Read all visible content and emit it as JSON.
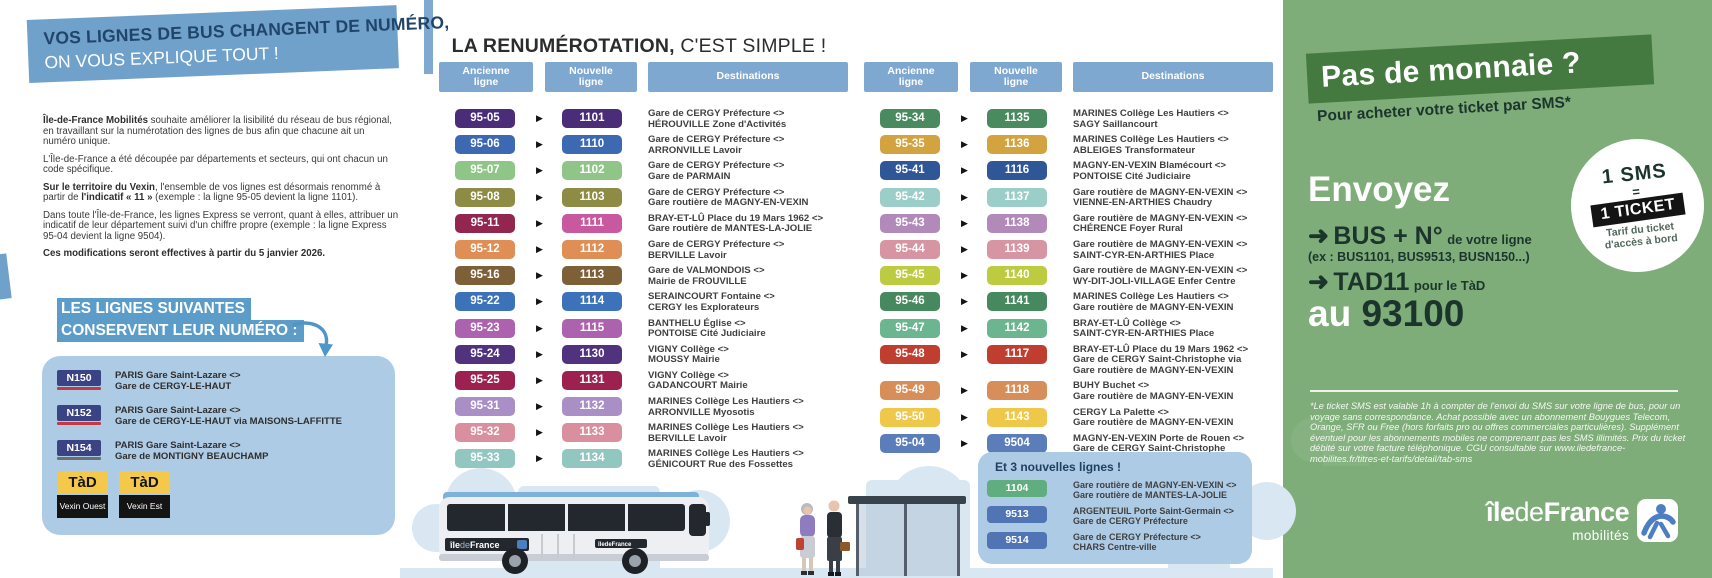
{
  "colors": {
    "banner_blue": "#6FA1CB",
    "card_blue": "#AECBE6",
    "header_bar_blue": "#7FA8D0",
    "chip_blue": "#5C9CC8",
    "navy_badge": "#3A4383",
    "tad_yellow": "#F3C84B",
    "green_bg": "#7FAD7A",
    "green_band": "#447A3F",
    "dark_green_text": "#1B352C"
  },
  "left_panel": {
    "banner_title": "VOS LIGNES DE BUS CHANGENT DE NUMÉRO,",
    "banner_subtitle": "ON VOUS EXPLIQUE TOUT !",
    "paragraphs": [
      {
        "parts": [
          {
            "b": true,
            "t": "Île-de-France Mobilités"
          },
          {
            "t": " souhaite améliorer la lisibilité du réseau de bus régional, en travaillant sur la numérotation des lignes de bus afin que chacune ait un numéro unique."
          }
        ]
      },
      {
        "parts": [
          {
            "t": "L'Île-de-France a été découpée par départements et secteurs, qui ont chacun un code spécifique."
          }
        ]
      },
      {
        "parts": [
          {
            "b": true,
            "t": "Sur le territoire du Vexin"
          },
          {
            "t": ", l'ensemble de vos lignes est désormais renommé à partir de "
          },
          {
            "b": true,
            "t": "l'indicatif « 11 »"
          },
          {
            "t": " (exemple : la ligne 95-05 devient la ligne 1101)."
          }
        ]
      },
      {
        "parts": [
          {
            "t": "Dans toute l'Île-de-France, les lignes Express se verront, quant à elles, attribuer un indicatif de leur département suivi d'un chiffre propre (exemple : la ligne Express 95-04 devient la ligne 9504)."
          }
        ]
      },
      {
        "parts": [
          {
            "b": true,
            "t": "Ces modifications seront effectives à partir du 5 janvier 2026."
          }
        ]
      }
    ],
    "keep_heading_line1": "LES LIGNES SUIVANTES",
    "keep_heading_line2": "CONSERVENT LEUR NUMÉRO :",
    "keep_lines": [
      {
        "code": "N150",
        "underline": "#C13A45",
        "dest": [
          "PARIS Gare Saint-Lazare <>",
          "Gare de CERGY-LE-HAUT"
        ]
      },
      {
        "code": "N152",
        "underline": "#C13A45",
        "dest": [
          "PARIS Gare Saint-Lazare <>",
          "Gare de CERGY-LE-HAUT via MAISONS-LAFFITTE"
        ]
      },
      {
        "code": "N154",
        "underline": "#6E6E6E",
        "dest": [
          "PARIS Gare Saint-Lazare <>",
          "Gare de MONTIGNY BEAUCHAMP"
        ]
      }
    ],
    "tad_badges": [
      {
        "label": "TàD",
        "zone": "Vexin Ouest"
      },
      {
        "label": "TàD",
        "zone": "Vexin Est"
      }
    ]
  },
  "main": {
    "title_bold": "LA RENUMÉROTATION,",
    "title_rest": " C'EST SIMPLE !",
    "col_old": "Ancienne\nligne",
    "col_new": "Nouvelle\nligne",
    "col_dest": "Destinations",
    "arrow_glyph": "▶",
    "tables": [
      {
        "rows": [
          {
            "old": "95-05",
            "new": "1101",
            "oc": "#4B2C78",
            "nc": "#4B2C78",
            "dest": [
              "Gare de CERGY Préfecture <>",
              "HÉROUVILLE Zone d'Activités"
            ]
          },
          {
            "old": "95-06",
            "new": "1110",
            "oc": "#3C69B2",
            "nc": "#3C69B2",
            "dest": [
              "Gare de CERGY Préfecture <>",
              "ARRONVILLE Lavoir"
            ]
          },
          {
            "old": "95-07",
            "new": "1102",
            "oc": "#8FC687",
            "nc": "#8FC687",
            "dest": [
              "Gare de CERGY Préfecture <>",
              "Gare de PARMAIN"
            ]
          },
          {
            "old": "95-08",
            "new": "1103",
            "oc": "#8E8C44",
            "nc": "#8E8C44",
            "dest": [
              "Gare de CERGY Préfecture <>",
              "Gare routière de MAGNY-EN-VEXIN"
            ]
          },
          {
            "old": "95-11",
            "new": "1111",
            "oc": "#92264F",
            "nc": "#C9599E",
            "dest": [
              "BRAY-ET-LÛ Place du 19 Mars 1962 <>",
              "Gare routière de MANTES-LA-JOLIE"
            ]
          },
          {
            "old": "95-12",
            "new": "1112",
            "oc": "#DF8E55",
            "nc": "#DF8E55",
            "dest": [
              "Gare de CERGY Préfecture <>",
              "BERVILLE Lavoir"
            ]
          },
          {
            "old": "95-16",
            "new": "1113",
            "oc": "#7D5F38",
            "nc": "#7D5F38",
            "dest": [
              "Gare de VALMONDOIS <>",
              "Mairie de FROUVILLE"
            ]
          },
          {
            "old": "95-22",
            "new": "1114",
            "oc": "#3C72B9",
            "nc": "#3C72B9",
            "dest": [
              "SERAINCOURT Fontaine <>",
              "CERGY les Explorateurs"
            ]
          },
          {
            "old": "95-23",
            "new": "1115",
            "oc": "#AC62AE",
            "nc": "#AC62AE",
            "dest": [
              "BANTHELU Église <>",
              "PONTOISE Cité Judiciaire"
            ]
          },
          {
            "old": "95-24",
            "new": "1130",
            "oc": "#50327F",
            "nc": "#50327F",
            "dest": [
              "VIGNY Collège <>",
              "MOUSSY Mairie"
            ]
          },
          {
            "old": "95-25",
            "new": "1131",
            "oc": "#9C2150",
            "nc": "#9C2150",
            "dest": [
              "VIGNY Collège <>",
              "GADANCOURT Mairie"
            ]
          },
          {
            "old": "95-31",
            "new": "1132",
            "oc": "#A98FC5",
            "nc": "#A98FC5",
            "dest": [
              "MARINES Collège Les Hautiers <>",
              "ARRONVILLE Myosotis"
            ]
          },
          {
            "old": "95-32",
            "new": "1133",
            "oc": "#D98F9E",
            "nc": "#D98F9E",
            "dest": [
              "MARINES Collège Les Hautiers <>",
              "BERVILLE Lavoir"
            ]
          },
          {
            "old": "95-33",
            "new": "1134",
            "oc": "#92C6C1",
            "nc": "#92C6C1",
            "dest": [
              "MARINES Collège Les Hautiers <>",
              "GÉNICOURT Rue des Fossettes"
            ]
          }
        ]
      },
      {
        "rows": [
          {
            "old": "95-34",
            "new": "1135",
            "oc": "#4A8A5F",
            "nc": "#4A8A5F",
            "dest": [
              "MARINES Collège Les Hautiers <>",
              "SAGY Saillancourt"
            ]
          },
          {
            "old": "95-35",
            "new": "1136",
            "oc": "#D2A33F",
            "nc": "#D2A33F",
            "dest": [
              "MARINES Collège Les Hautiers <>",
              "ABLEIGES Transformateur"
            ]
          },
          {
            "old": "95-41",
            "new": "1116",
            "oc": "#2F5697",
            "nc": "#2F5697",
            "dest": [
              "MAGNY-EN-VEXIN Blamécourt <>",
              "PONTOISE Cité Judiciaire"
            ]
          },
          {
            "old": "95-42",
            "new": "1137",
            "oc": "#9BCEC8",
            "nc": "#9BCEC8",
            "dest": [
              "Gare routière de MAGNY-EN-VEXIN <>",
              "VIENNE-EN-ARTHIES Chaudry"
            ]
          },
          {
            "old": "95-43",
            "new": "1138",
            "oc": "#B28ABA",
            "nc": "#B28ABA",
            "dest": [
              "Gare routière de MAGNY-EN-VEXIN <>",
              "CHÉRENCE Foyer Rural"
            ]
          },
          {
            "old": "95-44",
            "new": "1139",
            "oc": "#D795A3",
            "nc": "#D795A3",
            "dest": [
              "Gare routière de MAGNY-EN-VEXIN <>",
              "SAINT-CYR-EN-ARTHIES Place"
            ]
          },
          {
            "old": "95-45",
            "new": "1140",
            "oc": "#BCCB3F",
            "nc": "#BCCB3F",
            "dest": [
              "Gare routière de MAGNY-EN-VEXIN <>",
              "WY-DIT-JOLI-VILLAGE Enfer Centre"
            ]
          },
          {
            "old": "95-46",
            "new": "1141",
            "oc": "#47895E",
            "nc": "#47895E",
            "dest": [
              "MARINES Collège Les Hautiers <>",
              "Gare routière de MAGNY-EN-VEXIN"
            ]
          },
          {
            "old": "95-47",
            "new": "1142",
            "oc": "#6BB590",
            "nc": "#6BB590",
            "dest": [
              "BRAY-ET-LÛ Collège <>",
              "SAINT-CYR-EN-ARTHIES Place"
            ]
          },
          {
            "old": "95-48",
            "new": "1117",
            "oc": "#C03E2F",
            "nc": "#C03E2F",
            "dest": [
              "BRAY-ET-LÛ Place du 19 Mars 1962 <>",
              "Gare de CERGY Saint-Christophe via",
              "Gare routière de MAGNY-EN-VEXIN"
            ]
          },
          {
            "old": "95-49",
            "new": "1118",
            "oc": "#D78E58",
            "nc": "#D78E58",
            "dest": [
              "BUHY Buchet <>",
              "Gare routière de MAGNY-EN-VEXIN"
            ]
          },
          {
            "old": "95-50",
            "new": "1143",
            "oc": "#EFC84A",
            "nc": "#EFC84A",
            "dest": [
              "CERGY La Palette <>",
              "Gare routière de MAGNY-EN-VEXIN"
            ]
          },
          {
            "old": "95-04",
            "new": "9504",
            "oc": "#5B7DBA",
            "nc": "#5B7DBA",
            "dest": [
              "MAGNY-EN-VEXIN Porte de Rouen <>",
              "Gare de CERGY Saint-Christophe"
            ]
          }
        ]
      }
    ],
    "new_lines": {
      "title": "Et 3 nouvelles lignes !",
      "rows": [
        {
          "code": "1104",
          "color": "#60AE7F",
          "dest": [
            "Gare routière de MAGNY-EN-VEXIN <>",
            "Gare routière de MANTES-LA-JOLIE"
          ]
        },
        {
          "code": "9513",
          "color": "#5074B4",
          "dest": [
            "ARGENTEUIL Porte Saint-Germain <>",
            "Gare de CERGY Préfecture"
          ]
        },
        {
          "code": "9514",
          "color": "#5074B4",
          "dest": [
            "Gare de CERGY Préfecture <>",
            "CHARS Centre-ville"
          ]
        }
      ]
    }
  },
  "right_panel": {
    "band_title": "Pas de monnaie ?",
    "subtitle": "Pour acheter votre ticket par SMS*",
    "circle": {
      "line1": "1 SMS",
      "equals": "=",
      "line2": "1 TICKET",
      "small": "Tarif du ticket\nd'accès à bord"
    },
    "send_label": "Envoyez",
    "arrow": "➜",
    "bus_code": "BUS + N°",
    "bus_suffix": " de votre ligne",
    "example": "(ex : BUS1101, BUS9513, BUSN150...)",
    "tad_code": "TAD11",
    "tad_suffix": " pour le TàD",
    "au": "au ",
    "number": "93100",
    "footnote": "*Le ticket SMS est valable 1h à compter de l'envoi du SMS sur votre ligne de bus, pour un voyage sans correspondance. Achat possible avec un abonnement Bouygues Telecom, Orange, SFR ou Free (hors forfaits pro ou offres commerciales particulières). Supplément éventuel pour les abonnements mobiles ne comprenant pas les SMS illimités. Prix du ticket débité sur votre facture téléphonique. CGU consultable sur www.iledefrance-mobilites.fr/titres-et-tarifs/detail/tab-sms"
  },
  "logo": {
    "ile": "île",
    "de": "de",
    "france": "France",
    "mobilites": "mobilités"
  }
}
